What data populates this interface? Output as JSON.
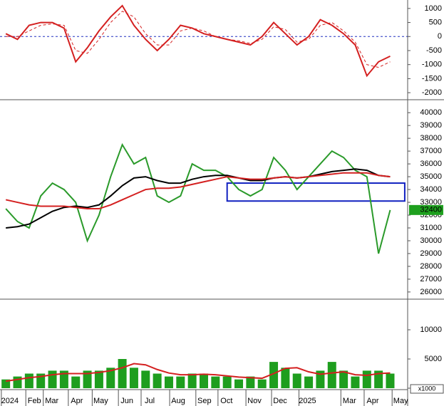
{
  "chart_data": [
    {
      "type": "line",
      "x": [
        0,
        2,
        4,
        6,
        8,
        10,
        12,
        14,
        16,
        18,
        20,
        22,
        24,
        26,
        28,
        30,
        32,
        34,
        36,
        38,
        40,
        42,
        44,
        46,
        48,
        50,
        52,
        54,
        56,
        58,
        60,
        62,
        64,
        66
      ],
      "xlim": [
        -1,
        69
      ],
      "ylim": [
        -2200,
        1250
      ],
      "yticks": [
        -2000,
        -1500,
        -1000,
        -500,
        0,
        500,
        1000
      ],
      "reference_line": 0,
      "series": [
        {
          "color": "#d42020",
          "values": [
            100,
            -100,
            400,
            500,
            500,
            300,
            -900,
            -400,
            200,
            700,
            1100,
            400,
            -100,
            -500,
            -100,
            400,
            300,
            100,
            0,
            -100,
            -200,
            -300,
            0,
            500,
            100,
            -300,
            0,
            600,
            400,
            100,
            -300,
            -1400,
            -900,
            -700
          ]
        },
        {
          "color": "#d42020",
          "dash": true,
          "values": [
            0,
            0,
            200,
            400,
            450,
            400,
            -500,
            -600,
            -100,
            500,
            900,
            700,
            100,
            -300,
            -300,
            200,
            300,
            200,
            0,
            -100,
            -150,
            -250,
            -100,
            350,
            250,
            -200,
            -100,
            400,
            500,
            200,
            -200,
            -1000,
            -1100,
            -900
          ]
        }
      ]
    },
    {
      "type": "line",
      "x": [
        0,
        2,
        4,
        6,
        8,
        10,
        12,
        14,
        16,
        18,
        20,
        22,
        24,
        26,
        28,
        30,
        32,
        34,
        36,
        38,
        40,
        42,
        44,
        46,
        48,
        50,
        52,
        54,
        56,
        58,
        60,
        62,
        64,
        66
      ],
      "xlim": [
        -1,
        69
      ],
      "ylim": [
        25550,
        40900
      ],
      "yticks": [
        26000,
        27000,
        28000,
        29000,
        30000,
        31000,
        32000,
        33000,
        34000,
        35000,
        36000,
        37000,
        38000,
        39000,
        40000
      ],
      "last_price": 32400,
      "zone": {
        "x": [
          38,
          68.5
        ],
        "y": [
          33100,
          34500
        ]
      },
      "series": [
        {
          "color": "#2a9a2a",
          "values": [
            32500,
            31500,
            31000,
            33500,
            34500,
            34000,
            33000,
            30000,
            32000,
            35000,
            37500,
            36000,
            36500,
            33500,
            33000,
            33500,
            36000,
            35500,
            35500,
            35000,
            34000,
            33500,
            34000,
            36500,
            35500,
            34000,
            35000,
            36000,
            37000,
            36500,
            35500,
            35000,
            29000,
            32400
          ]
        },
        {
          "color": "#000000",
          "values": [
            31000,
            31100,
            31300,
            31800,
            32300,
            32600,
            32700,
            32600,
            32800,
            33500,
            34300,
            34900,
            35000,
            34700,
            34500,
            34500,
            34800,
            35000,
            35100,
            35100,
            34900,
            34700,
            34700,
            34900,
            35000,
            34900,
            35000,
            35200,
            35400,
            35500,
            35600,
            35500,
            35100,
            35000
          ]
        },
        {
          "color": "#d42020",
          "values": [
            33200,
            33000,
            32800,
            32700,
            32700,
            32700,
            32600,
            32500,
            32500,
            32800,
            33200,
            33600,
            34000,
            34100,
            34100,
            34200,
            34400,
            34600,
            34800,
            35000,
            34900,
            34800,
            34800,
            34900,
            35000,
            34900,
            35000,
            35100,
            35200,
            35300,
            35300,
            35300,
            35100,
            35000
          ]
        }
      ]
    },
    {
      "type": "bar",
      "x": [
        0,
        2,
        4,
        6,
        8,
        10,
        12,
        14,
        16,
        18,
        20,
        22,
        24,
        26,
        28,
        30,
        32,
        34,
        36,
        38,
        40,
        42,
        44,
        46,
        48,
        50,
        52,
        54,
        56,
        58,
        60,
        62,
        64,
        66
      ],
      "xlim": [
        -1,
        69
      ],
      "ylim": [
        0,
        15000
      ],
      "yticks": [
        0,
        5000,
        10000
      ],
      "unit_label": "x1000",
      "xticks": [
        {
          "value": 0.7,
          "label": "2024"
        },
        {
          "value": 4.9,
          "label": "Feb"
        },
        {
          "value": 7.9,
          "label": "Mar"
        },
        {
          "value": 12.2,
          "label": "Apr"
        },
        {
          "value": 16.3,
          "label": "May"
        },
        {
          "value": 20.8,
          "label": "Jun"
        },
        {
          "value": 24.7,
          "label": "Jul"
        },
        {
          "value": 29.6,
          "label": "Aug"
        },
        {
          "value": 34.1,
          "label": "Sep"
        },
        {
          "value": 37.9,
          "label": "Oct"
        },
        {
          "value": 42.7,
          "label": "Nov"
        },
        {
          "value": 47.1,
          "label": "Dec"
        },
        {
          "value": 51.8,
          "label": "2025"
        },
        {
          "value": 59,
          "label": "Mar"
        },
        {
          "value": 63,
          "label": "Apr"
        },
        {
          "value": 67.8,
          "label": "May"
        }
      ],
      "series": [
        {
          "type": "bar",
          "color": "#1e9e1e",
          "values": [
            1500,
            2000,
            2500,
            2500,
            3000,
            3000,
            2000,
            3000,
            3000,
            3500,
            5000,
            3500,
            3000,
            2500,
            2000,
            2000,
            2500,
            2500,
            2000,
            2000,
            1500,
            2000,
            1500,
            4500,
            3500,
            2500,
            2000,
            3000,
            4500,
            3000,
            2000,
            3000,
            3000,
            2500
          ]
        },
        {
          "type": "line",
          "color": "#d42020",
          "values": [
            1200,
            1500,
            1800,
            2000,
            2300,
            2500,
            2500,
            2500,
            2700,
            3000,
            3500,
            4200,
            4000,
            3200,
            2600,
            2300,
            2300,
            2400,
            2300,
            2100,
            1900,
            1800,
            1700,
            2500,
            3400,
            3500,
            2800,
            2400,
            2600,
            2800,
            2300,
            2200,
            2500,
            2600
          ]
        }
      ]
    }
  ]
}
